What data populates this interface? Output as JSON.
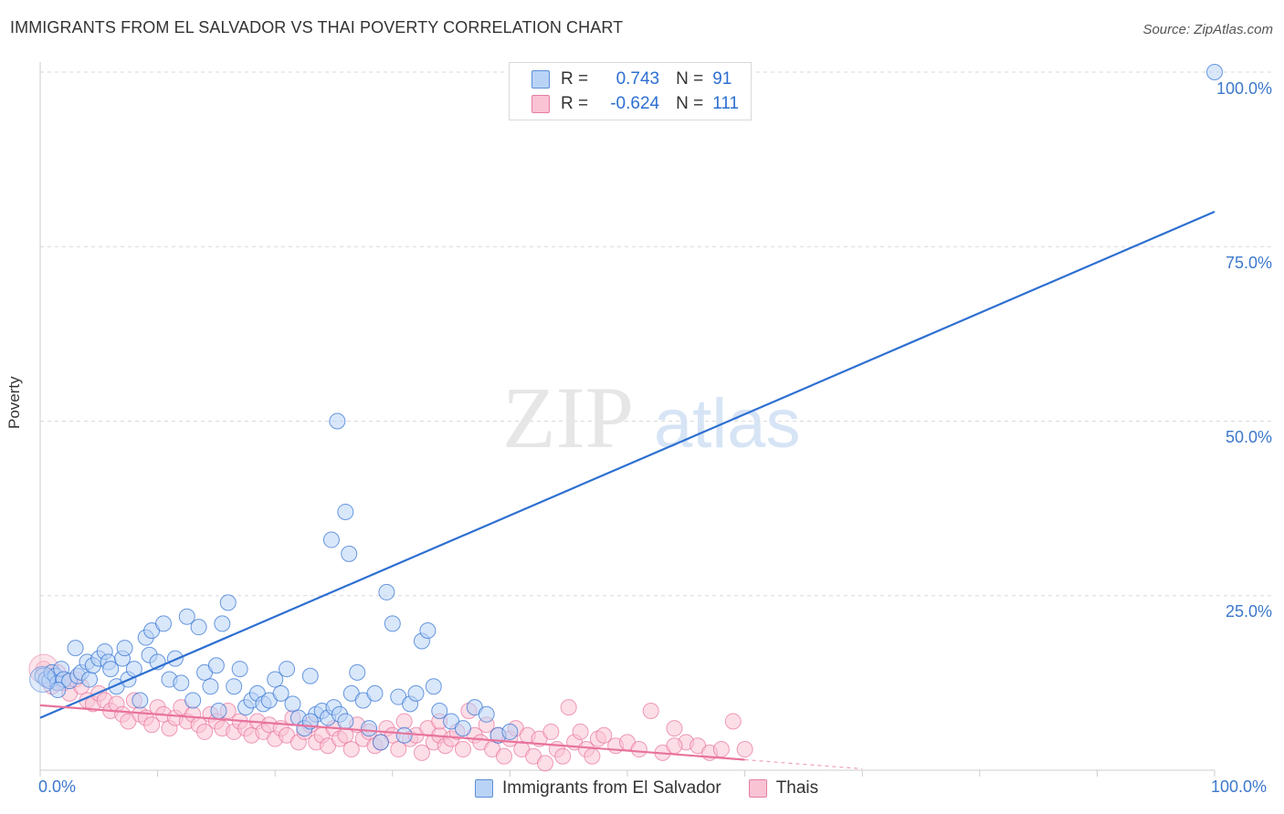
{
  "title": "IMMIGRANTS FROM EL SALVADOR VS THAI POVERTY CORRELATION CHART",
  "source": "Source: ZipAtlas.com",
  "watermark": {
    "zip": "ZIP",
    "atlas": "atlas"
  },
  "colors": {
    "blue": "#2d6fd1",
    "blue_fill": "#b9d3f6",
    "pink": "#e8739c",
    "pink_fill": "#f9c3d3",
    "grid": "#d9d9d9",
    "tick_text": "#3d78cc"
  },
  "legend": {
    "series1": {
      "r_label": "R =",
      "r_value": "0.743",
      "n_label": "N =",
      "n_value": "91"
    },
    "series2": {
      "r_label": "R =",
      "r_value": "-0.624",
      "n_label": "N =",
      "n_value": "111"
    }
  },
  "chart_data": {
    "type": "scatter",
    "title": "IMMIGRANTS FROM EL SALVADOR VS THAI POVERTY CORRELATION CHART",
    "xlabel": "",
    "ylabel": "Poverty",
    "xlim": [
      0,
      100
    ],
    "ylim": [
      0,
      100
    ],
    "x_tick_labels": [
      "0.0%",
      "100.0%"
    ],
    "y_ticks": [
      25,
      50,
      75,
      100
    ],
    "y_tick_labels": [
      "25.0%",
      "50.0%",
      "75.0%",
      "100.0%"
    ],
    "grid": true,
    "legend_position": "top-center",
    "series": [
      {
        "name": "Immigrants from El Salvador",
        "color": "#2d6fd1",
        "trend": {
          "x": [
            0,
            100
          ],
          "y": [
            7.5,
            80
          ]
        },
        "points": [
          [
            0.2,
            13.5
          ],
          [
            0.5,
            13
          ],
          [
            0.8,
            12.8
          ],
          [
            1,
            14
          ],
          [
            1.3,
            13.5
          ],
          [
            1.5,
            12.5
          ],
          [
            1.8,
            14.5
          ],
          [
            2,
            13
          ],
          [
            2.5,
            12.8
          ],
          [
            3,
            17.5
          ],
          [
            3.2,
            13.5
          ],
          [
            3.5,
            14
          ],
          [
            4,
            15.5
          ],
          [
            4.2,
            13
          ],
          [
            4.5,
            15
          ],
          [
            5,
            16
          ],
          [
            5.5,
            17
          ],
          [
            5.8,
            15.5
          ],
          [
            6,
            14.5
          ],
          [
            6.5,
            12
          ],
          [
            7,
            16
          ],
          [
            7.2,
            17.5
          ],
          [
            7.5,
            13
          ],
          [
            8,
            14.5
          ],
          [
            8.5,
            10
          ],
          [
            9,
            19
          ],
          [
            9.3,
            16.5
          ],
          [
            9.5,
            20
          ],
          [
            10,
            15.5
          ],
          [
            10.5,
            21
          ],
          [
            11,
            13
          ],
          [
            11.5,
            16
          ],
          [
            12,
            12.5
          ],
          [
            12.5,
            22
          ],
          [
            13,
            10
          ],
          [
            13.5,
            20.5
          ],
          [
            14,
            14
          ],
          [
            14.5,
            12
          ],
          [
            15,
            15
          ],
          [
            15.2,
            8.5
          ],
          [
            15.5,
            21
          ],
          [
            16,
            24
          ],
          [
            16.5,
            12
          ],
          [
            17,
            14.5
          ],
          [
            17.5,
            9
          ],
          [
            18,
            10
          ],
          [
            18.5,
            11
          ],
          [
            19,
            9.5
          ],
          [
            19.5,
            10
          ],
          [
            20,
            13
          ],
          [
            20.5,
            11
          ],
          [
            21,
            14.5
          ],
          [
            21.5,
            9.5
          ],
          [
            22,
            7.5
          ],
          [
            22.5,
            6
          ],
          [
            23,
            13.5
          ],
          [
            23.5,
            8
          ],
          [
            24,
            8.5
          ],
          [
            24.5,
            7.5
          ],
          [
            25,
            9
          ],
          [
            25.5,
            8
          ],
          [
            26,
            7
          ],
          [
            26.5,
            11
          ],
          [
            27,
            14
          ],
          [
            27.5,
            10
          ],
          [
            28,
            6
          ],
          [
            28.5,
            11
          ],
          [
            29,
            4
          ],
          [
            29.5,
            25.5
          ],
          [
            30,
            21
          ],
          [
            30.5,
            10.5
          ],
          [
            31,
            5
          ],
          [
            31.5,
            9.5
          ],
          [
            32,
            11
          ],
          [
            32.5,
            18.5
          ],
          [
            33,
            20
          ],
          [
            33.5,
            12
          ],
          [
            34,
            8.5
          ],
          [
            35,
            7
          ],
          [
            36,
            6
          ],
          [
            37,
            9
          ],
          [
            38,
            8
          ],
          [
            39,
            5
          ],
          [
            40,
            5.5
          ],
          [
            23,
            7
          ],
          [
            24.8,
            33
          ],
          [
            25.3,
            50
          ],
          [
            26,
            37
          ],
          [
            26.3,
            31
          ],
          [
            100,
            100
          ],
          [
            1.5,
            11.5
          ]
        ]
      },
      {
        "name": "Thais",
        "color": "#e8739c",
        "trend": {
          "x": [
            0,
            60
          ],
          "y": [
            9.3,
            1.5
          ]
        },
        "trend_dashed": {
          "x": [
            60,
            70
          ],
          "y": [
            1.5,
            0.2
          ]
        },
        "points": [
          [
            0.3,
            14.5
          ],
          [
            0.6,
            13
          ],
          [
            1,
            12
          ],
          [
            1.5,
            14
          ],
          [
            2,
            12.5
          ],
          [
            2.5,
            11
          ],
          [
            3,
            13
          ],
          [
            3.5,
            12
          ],
          [
            4,
            10
          ],
          [
            4.5,
            9.5
          ],
          [
            5,
            11
          ],
          [
            5.5,
            10
          ],
          [
            6,
            8.5
          ],
          [
            6.5,
            9.5
          ],
          [
            7,
            8
          ],
          [
            7.5,
            7
          ],
          [
            8,
            10
          ],
          [
            8.5,
            8
          ],
          [
            9,
            7.5
          ],
          [
            9.5,
            6.5
          ],
          [
            10,
            9
          ],
          [
            10.5,
            8
          ],
          [
            11,
            6
          ],
          [
            11.5,
            7.5
          ],
          [
            12,
            9
          ],
          [
            12.5,
            7
          ],
          [
            13,
            8
          ],
          [
            13.5,
            6.5
          ],
          [
            14,
            5.5
          ],
          [
            14.5,
            8
          ],
          [
            15,
            7
          ],
          [
            15.5,
            6
          ],
          [
            16,
            8.5
          ],
          [
            16.5,
            5.5
          ],
          [
            17,
            7
          ],
          [
            17.5,
            6
          ],
          [
            18,
            5
          ],
          [
            18.5,
            7
          ],
          [
            19,
            5.5
          ],
          [
            19.5,
            6.5
          ],
          [
            20,
            4.5
          ],
          [
            20.5,
            6
          ],
          [
            21,
            5
          ],
          [
            21.5,
            7.5
          ],
          [
            22,
            4
          ],
          [
            22.5,
            5.5
          ],
          [
            23,
            6.5
          ],
          [
            23.5,
            4
          ],
          [
            24,
            5
          ],
          [
            24.5,
            3.5
          ],
          [
            25,
            6
          ],
          [
            25.5,
            4.5
          ],
          [
            26,
            5
          ],
          [
            26.5,
            3
          ],
          [
            27,
            6.5
          ],
          [
            27.5,
            4.5
          ],
          [
            28,
            5.5
          ],
          [
            28.5,
            3.5
          ],
          [
            29,
            4
          ],
          [
            29.5,
            6
          ],
          [
            30,
            5
          ],
          [
            30.5,
            3
          ],
          [
            31,
            7
          ],
          [
            31.5,
            4.5
          ],
          [
            32,
            5
          ],
          [
            32.5,
            2.5
          ],
          [
            33,
            6
          ],
          [
            33.5,
            4
          ],
          [
            34,
            5
          ],
          [
            34.5,
            3.5
          ],
          [
            35,
            4.5
          ],
          [
            35.5,
            5.5
          ],
          [
            36,
            3
          ],
          [
            36.5,
            8.5
          ],
          [
            37,
            5
          ],
          [
            37.5,
            4
          ],
          [
            38,
            6.5
          ],
          [
            38.5,
            3
          ],
          [
            39,
            5
          ],
          [
            39.5,
            2
          ],
          [
            40,
            4.5
          ],
          [
            40.5,
            6
          ],
          [
            41,
            3
          ],
          [
            41.5,
            5
          ],
          [
            42,
            2
          ],
          [
            42.5,
            4.5
          ],
          [
            43,
            1
          ],
          [
            43.5,
            5.5
          ],
          [
            44,
            3
          ],
          [
            44.5,
            2
          ],
          [
            45,
            9
          ],
          [
            45.5,
            4
          ],
          [
            46,
            5.5
          ],
          [
            46.5,
            3
          ],
          [
            47,
            2
          ],
          [
            47.5,
            4.5
          ],
          [
            48,
            5
          ],
          [
            49,
            3.5
          ],
          [
            50,
            4
          ],
          [
            51,
            3
          ],
          [
            52,
            8.5
          ],
          [
            53,
            2.5
          ],
          [
            54,
            6
          ],
          [
            55,
            4
          ],
          [
            56,
            3.5
          ],
          [
            57,
            2.5
          ],
          [
            58,
            3
          ],
          [
            59,
            7
          ],
          [
            60,
            3
          ],
          [
            34,
            7
          ],
          [
            54,
            3.5
          ]
        ]
      }
    ]
  },
  "bottom_legend": [
    "Immigrants from El Salvador",
    "Thais"
  ]
}
